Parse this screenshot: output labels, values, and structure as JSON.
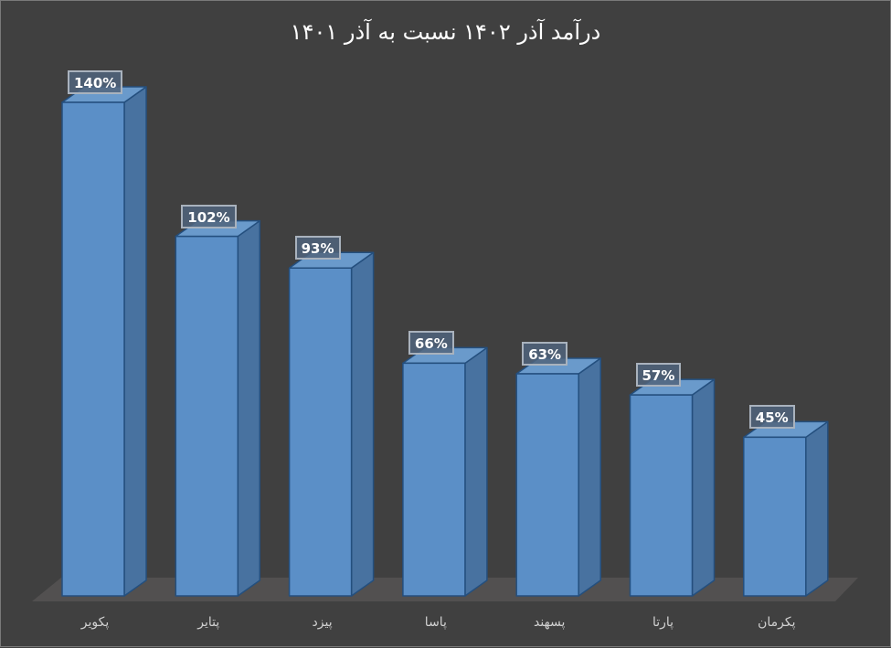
{
  "chart_data": {
    "type": "bar",
    "style": "3d-column",
    "title": "درآمد آذر ۱۴۰۲ نسبت به آذر ۱۴۰۱",
    "xlabel": "",
    "ylabel": "",
    "categories": [
      "پکویر",
      "پتایر",
      "پیزد",
      "پاسا",
      "پسهند",
      "پارتا",
      "پکرمان"
    ],
    "values": [
      140,
      102,
      93,
      66,
      63,
      57,
      45
    ],
    "value_labels": [
      "140%",
      "102%",
      "93%",
      "66%",
      "63%",
      "57%",
      "45%"
    ],
    "unit": "%",
    "ylim": [
      0,
      140
    ],
    "grid": false,
    "legend": "none",
    "data_labels": true
  },
  "colors": {
    "background": "#404040",
    "bar_front": "#5b8fc7",
    "bar_side": "#4872a0",
    "bar_top": "#6a9acb",
    "bar_edge": "#244f7e",
    "floor": "#525050",
    "title_text": "#ffffff",
    "axis_text": "#d0d0d0"
  }
}
